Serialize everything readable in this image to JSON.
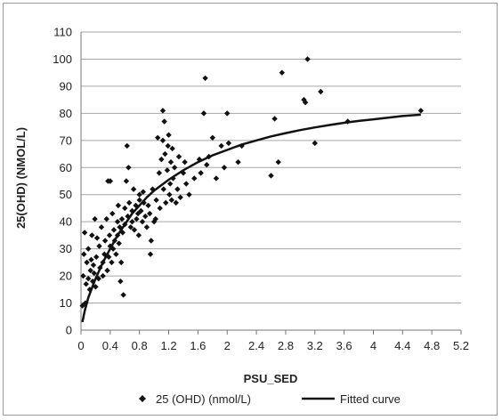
{
  "chart_data": {
    "type": "scatter",
    "title": "",
    "xlabel": "PSU_SED",
    "ylabel": "25(OHD) (NMOL/L)",
    "xlim": [
      0,
      5.2
    ],
    "ylim": [
      0,
      110
    ],
    "x_ticks": [
      "0",
      "0.4",
      "0.8",
      "1.2",
      "1.6",
      "2",
      "2.4",
      "2.8",
      "3.2",
      "3.6",
      "4",
      "4.4",
      "4.8",
      "5.2"
    ],
    "y_ticks": [
      "0",
      "10",
      "20",
      "30",
      "40",
      "50",
      "60",
      "70",
      "80",
      "90",
      "100",
      "110"
    ],
    "grid": "horizontal",
    "legend_position": "bottom",
    "series": [
      {
        "name": "25 (OHD) (nmol/L)",
        "kind": "scatter",
        "marker": "diamond",
        "color": "#111111",
        "points": [
          [
            0.02,
            9
          ],
          [
            0.03,
            20
          ],
          [
            0.04,
            28
          ],
          [
            0.05,
            36
          ],
          [
            0.06,
            10
          ],
          [
            0.07,
            17
          ],
          [
            0.08,
            25
          ],
          [
            0.1,
            19
          ],
          [
            0.1,
            30
          ],
          [
            0.12,
            15
          ],
          [
            0.13,
            22
          ],
          [
            0.14,
            26
          ],
          [
            0.15,
            35
          ],
          [
            0.16,
            18
          ],
          [
            0.17,
            24
          ],
          [
            0.18,
            21
          ],
          [
            0.19,
            41
          ],
          [
            0.2,
            16
          ],
          [
            0.21,
            27
          ],
          [
            0.22,
            34
          ],
          [
            0.24,
            19
          ],
          [
            0.25,
            31
          ],
          [
            0.26,
            23
          ],
          [
            0.28,
            38
          ],
          [
            0.3,
            25
          ],
          [
            0.3,
            20
          ],
          [
            0.32,
            28
          ],
          [
            0.33,
            33
          ],
          [
            0.35,
            41
          ],
          [
            0.36,
            22
          ],
          [
            0.37,
            55
          ],
          [
            0.38,
            27
          ],
          [
            0.39,
            35
          ],
          [
            0.4,
            31
          ],
          [
            0.4,
            55
          ],
          [
            0.42,
            25
          ],
          [
            0.43,
            43
          ],
          [
            0.44,
            30
          ],
          [
            0.45,
            37
          ],
          [
            0.46,
            33
          ],
          [
            0.48,
            28
          ],
          [
            0.5,
            40
          ],
          [
            0.5,
            35
          ],
          [
            0.51,
            46
          ],
          [
            0.52,
            32
          ],
          [
            0.53,
            38
          ],
          [
            0.54,
            18
          ],
          [
            0.55,
            25
          ],
          [
            0.56,
            41
          ],
          [
            0.57,
            36
          ],
          [
            0.58,
            13
          ],
          [
            0.6,
            45
          ],
          [
            0.6,
            39
          ],
          [
            0.62,
            55
          ],
          [
            0.63,
            68
          ],
          [
            0.64,
            42
          ],
          [
            0.65,
            60
          ],
          [
            0.66,
            47
          ],
          [
            0.68,
            38
          ],
          [
            0.7,
            44
          ],
          [
            0.7,
            40
          ],
          [
            0.72,
            52
          ],
          [
            0.73,
            37
          ],
          [
            0.75,
            46
          ],
          [
            0.76,
            41
          ],
          [
            0.78,
            43
          ],
          [
            0.79,
            35
          ],
          [
            0.8,
            50
          ],
          [
            0.8,
            48
          ],
          [
            0.82,
            44
          ],
          [
            0.84,
            40
          ],
          [
            0.85,
            51
          ],
          [
            0.86,
            47
          ],
          [
            0.88,
            42
          ],
          [
            0.9,
            38
          ],
          [
            0.92,
            46
          ],
          [
            0.94,
            43
          ],
          [
            0.95,
            28
          ],
          [
            0.96,
            33
          ],
          [
            0.98,
            52
          ],
          [
            1.0,
            40
          ],
          [
            1.02,
            41
          ],
          [
            1.03,
            48
          ],
          [
            1.05,
            71
          ],
          [
            1.07,
            58
          ],
          [
            1.08,
            45
          ],
          [
            1.1,
            63
          ],
          [
            1.12,
            70
          ],
          [
            1.12,
            81
          ],
          [
            1.13,
            52
          ],
          [
            1.14,
            77
          ],
          [
            1.15,
            65
          ],
          [
            1.16,
            47
          ],
          [
            1.18,
            59
          ],
          [
            1.19,
            68
          ],
          [
            1.2,
            72
          ],
          [
            1.21,
            50
          ],
          [
            1.22,
            54
          ],
          [
            1.23,
            62
          ],
          [
            1.24,
            48
          ],
          [
            1.25,
            67
          ],
          [
            1.26,
            56
          ],
          [
            1.28,
            60
          ],
          [
            1.3,
            47
          ],
          [
            1.32,
            52
          ],
          [
            1.34,
            64
          ],
          [
            1.36,
            49
          ],
          [
            1.4,
            58
          ],
          [
            1.42,
            62
          ],
          [
            1.44,
            54
          ],
          [
            1.48,
            50
          ],
          [
            1.55,
            56
          ],
          [
            1.62,
            63
          ],
          [
            1.64,
            58
          ],
          [
            1.68,
            80
          ],
          [
            1.7,
            93
          ],
          [
            1.72,
            61
          ],
          [
            1.75,
            64
          ],
          [
            1.8,
            71
          ],
          [
            1.85,
            56
          ],
          [
            1.92,
            68
          ],
          [
            1.96,
            60
          ],
          [
            2.0,
            80
          ],
          [
            2.02,
            69
          ],
          [
            2.15,
            62
          ],
          [
            2.2,
            68
          ],
          [
            2.6,
            57
          ],
          [
            2.65,
            78
          ],
          [
            2.7,
            62
          ],
          [
            2.75,
            95
          ],
          [
            3.05,
            85
          ],
          [
            3.07,
            84
          ],
          [
            3.1,
            100
          ],
          [
            3.2,
            69
          ],
          [
            3.28,
            88
          ],
          [
            3.65,
            77
          ],
          [
            4.65,
            81
          ]
        ]
      },
      {
        "name": "Fitted curve",
        "kind": "line",
        "color": "#111111",
        "points": [
          [
            0.02,
            3
          ],
          [
            0.05,
            7
          ],
          [
            0.1,
            12
          ],
          [
            0.2,
            19
          ],
          [
            0.3,
            25
          ],
          [
            0.4,
            30
          ],
          [
            0.5,
            35
          ],
          [
            0.6,
            39
          ],
          [
            0.7,
            43
          ],
          [
            0.8,
            46
          ],
          [
            0.9,
            49
          ],
          [
            1.0,
            51.5
          ],
          [
            1.2,
            55.5
          ],
          [
            1.4,
            59
          ],
          [
            1.6,
            62
          ],
          [
            1.8,
            64.5
          ],
          [
            2.0,
            66.5
          ],
          [
            2.2,
            68.5
          ],
          [
            2.4,
            70
          ],
          [
            2.6,
            71.5
          ],
          [
            2.8,
            72.7
          ],
          [
            3.0,
            73.8
          ],
          [
            3.2,
            74.8
          ],
          [
            3.4,
            75.7
          ],
          [
            3.6,
            76.5
          ],
          [
            3.8,
            77.2
          ],
          [
            4.0,
            77.8
          ],
          [
            4.2,
            78.4
          ],
          [
            4.4,
            79
          ],
          [
            4.65,
            79.5
          ]
        ]
      }
    ]
  }
}
